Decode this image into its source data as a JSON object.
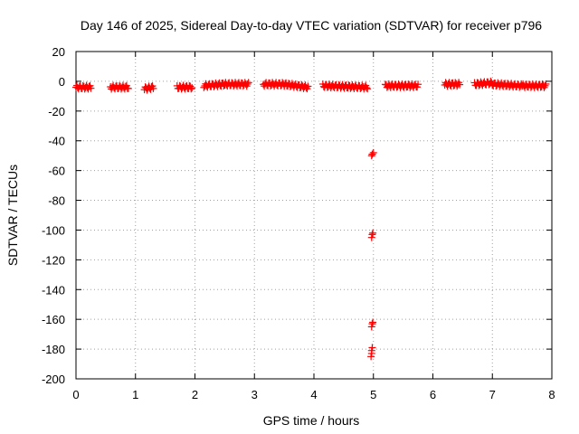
{
  "chart_data": {
    "type": "scatter",
    "title": "Day 146 of 2025, Sidereal Day-to-day VTEC variation (SDTVAR) for receiver p796",
    "xlabel": "GPS time / hours",
    "ylabel": "SDTVAR / TECUs",
    "xlim": [
      0,
      8
    ],
    "ylim": [
      -200,
      20
    ],
    "x_ticks": [
      0,
      1,
      2,
      3,
      4,
      5,
      6,
      7,
      8
    ],
    "x_tick_labels": [
      "0",
      "1",
      "2",
      "3",
      "4",
      "5",
      "6",
      "7",
      "8"
    ],
    "y_ticks": [
      20,
      0,
      -20,
      -40,
      -60,
      -80,
      -100,
      -120,
      -140,
      -160,
      -180,
      -200
    ],
    "y_tick_labels": [
      "20",
      "0",
      "-20",
      "-40",
      "-60",
      "-80",
      "-100",
      "-120",
      "-140",
      "-160",
      "-180",
      "-200"
    ],
    "grid": true,
    "marker": "plus",
    "color": "#ff0000",
    "series": [
      {
        "name": "SDTVAR",
        "segments": [
          {
            "x_start": 0.0,
            "x_end": 0.25,
            "y_start": -4,
            "y_end": -4
          },
          {
            "x_start": 0.58,
            "x_end": 0.88,
            "y_start": -4,
            "y_end": -4
          },
          {
            "x_start": 1.15,
            "x_end": 1.3,
            "y_start": -5,
            "y_end": -4
          },
          {
            "x_start": 1.7,
            "x_end": 1.95,
            "y_start": -4,
            "y_end": -4
          },
          {
            "x_start": 2.15,
            "x_end": 2.5,
            "y_start": -3,
            "y_end": -2
          },
          {
            "x_start": 2.5,
            "x_end": 2.9,
            "y_start": -2,
            "y_end": -2
          },
          {
            "x_start": 3.15,
            "x_end": 3.5,
            "y_start": -2,
            "y_end": -2
          },
          {
            "x_start": 3.5,
            "x_end": 3.9,
            "y_start": -2,
            "y_end": -4
          },
          {
            "x_start": 4.15,
            "x_end": 4.9,
            "y_start": -3,
            "y_end": -4
          },
          {
            "x_start": 5.2,
            "x_end": 5.75,
            "y_start": -3,
            "y_end": -3
          },
          {
            "x_start": 6.2,
            "x_end": 6.45,
            "y_start": -2,
            "y_end": -2
          },
          {
            "x_start": 6.7,
            "x_end": 7.0,
            "y_start": -2,
            "y_end": -1
          },
          {
            "x_start": 7.0,
            "x_end": 7.5,
            "y_start": -2,
            "y_end": -3
          },
          {
            "x_start": 7.5,
            "x_end": 7.9,
            "y_start": -3,
            "y_end": -3
          }
        ],
        "points": [
          {
            "x": 4.97,
            "y": -50
          },
          {
            "x": 4.98,
            "y": -49
          },
          {
            "x": 5.0,
            "y": -48
          },
          {
            "x": 4.97,
            "y": -105
          },
          {
            "x": 4.98,
            "y": -103
          },
          {
            "x": 4.99,
            "y": -102
          },
          {
            "x": 4.97,
            "y": -165
          },
          {
            "x": 4.98,
            "y": -163
          },
          {
            "x": 4.99,
            "y": -162
          },
          {
            "x": 4.96,
            "y": -185
          },
          {
            "x": 4.97,
            "y": -183
          },
          {
            "x": 4.97,
            "y": -181
          },
          {
            "x": 4.98,
            "y": -179
          }
        ]
      }
    ]
  }
}
